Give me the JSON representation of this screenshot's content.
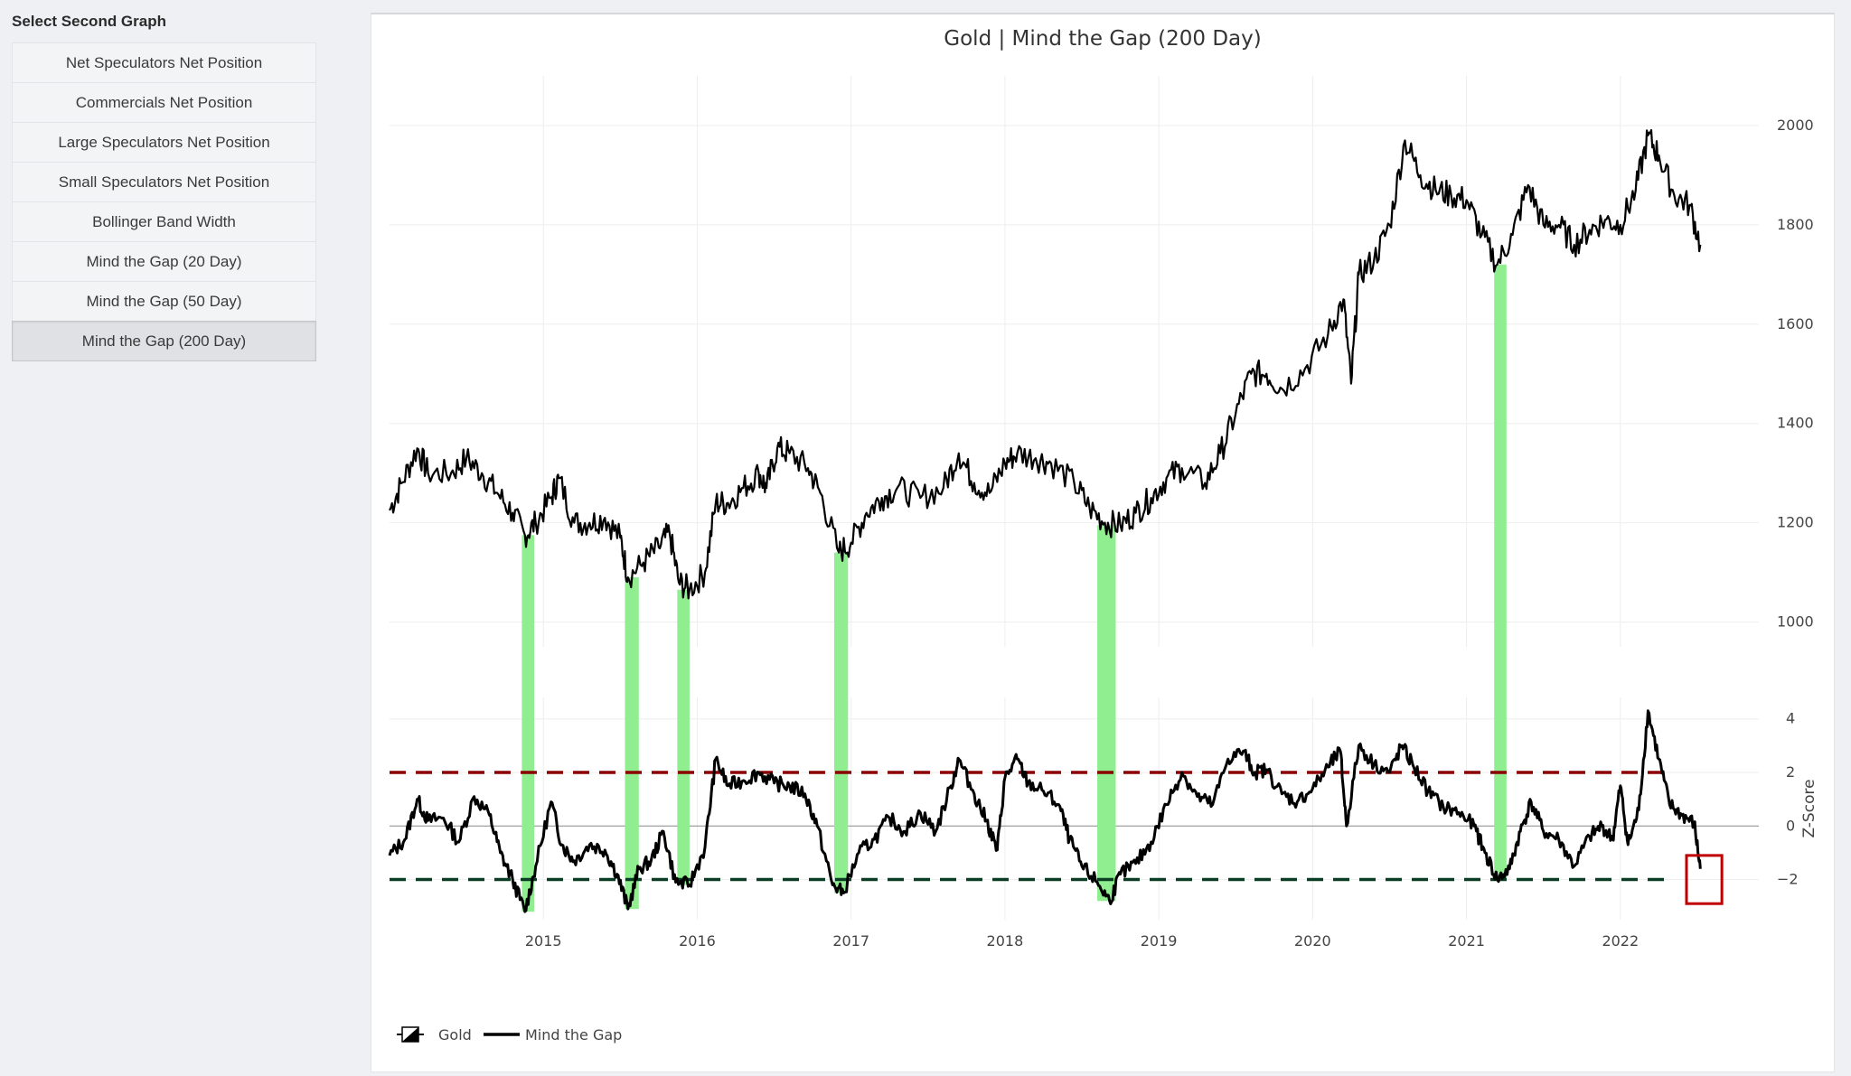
{
  "sidebar": {
    "title": "Select Second Graph",
    "items": [
      {
        "label": "Net Speculators Net Position",
        "active": false
      },
      {
        "label": "Commercials Net Position",
        "active": false
      },
      {
        "label": "Large Speculators Net Position",
        "active": false
      },
      {
        "label": "Small Speculators Net Position",
        "active": false
      },
      {
        "label": "Bollinger Band Width",
        "active": false
      },
      {
        "label": "Mind the Gap (20 Day)",
        "active": false
      },
      {
        "label": "Mind the Gap (50 Day)",
        "active": false
      },
      {
        "label": "Mind the Gap (200 Day)",
        "active": true
      }
    ]
  },
  "colors": {
    "highlight": "#90ee90",
    "upper_band": "#8b0000",
    "lower_band": "#0b3d24",
    "line": "#000000",
    "alert_box": "#c00000"
  },
  "chart_data": {
    "type": "line",
    "title": "Gold | Mind the Gap (200 Day)",
    "x_ticks": [
      "2015",
      "2016",
      "2017",
      "2018",
      "2019",
      "2020",
      "2021",
      "2022"
    ],
    "x_range": [
      2014.0,
      2022.9
    ],
    "grid": true,
    "legend_position": "bottom-left",
    "legend": [
      "Gold",
      "Mind the Gap"
    ],
    "top_panel": {
      "series_name": "Gold",
      "y_ticks": [
        "1000",
        "1200",
        "1400",
        "1600",
        "1800",
        "2000"
      ],
      "y_range": [
        950,
        2100
      ],
      "points": [
        [
          2014.0,
          1225
        ],
        [
          2014.08,
          1280
        ],
        [
          2014.18,
          1350
        ],
        [
          2014.25,
          1300
        ],
        [
          2014.4,
          1300
        ],
        [
          2014.5,
          1330
        ],
        [
          2014.6,
          1300
        ],
        [
          2014.7,
          1260
        ],
        [
          2014.8,
          1220
        ],
        [
          2014.88,
          1175
        ],
        [
          2014.95,
          1200
        ],
        [
          2015.05,
          1250
        ],
        [
          2015.1,
          1290
        ],
        [
          2015.2,
          1200
        ],
        [
          2015.3,
          1200
        ],
        [
          2015.4,
          1210
        ],
        [
          2015.5,
          1170
        ],
        [
          2015.55,
          1090
        ],
        [
          2015.65,
          1120
        ],
        [
          2015.75,
          1150
        ],
        [
          2015.82,
          1180
        ],
        [
          2015.88,
          1080
        ],
        [
          2015.95,
          1065
        ],
        [
          2016.05,
          1100
        ],
        [
          2016.12,
          1240
        ],
        [
          2016.2,
          1240
        ],
        [
          2016.3,
          1270
        ],
        [
          2016.4,
          1300
        ],
        [
          2016.45,
          1270
        ],
        [
          2016.52,
          1350
        ],
        [
          2016.6,
          1340
        ],
        [
          2016.72,
          1310
        ],
        [
          2016.8,
          1260
        ],
        [
          2016.92,
          1140
        ],
        [
          2017.0,
          1160
        ],
        [
          2017.1,
          1220
        ],
        [
          2017.2,
          1250
        ],
        [
          2017.3,
          1270
        ],
        [
          2017.45,
          1250
        ],
        [
          2017.6,
          1270
        ],
        [
          2017.7,
          1340
        ],
        [
          2017.8,
          1280
        ],
        [
          2017.9,
          1260
        ],
        [
          2018.0,
          1320
        ],
        [
          2018.08,
          1340
        ],
        [
          2018.2,
          1330
        ],
        [
          2018.3,
          1320
        ],
        [
          2018.45,
          1280
        ],
        [
          2018.55,
          1230
        ],
        [
          2018.65,
          1200
        ],
        [
          2018.75,
          1195
        ],
        [
          2018.85,
          1220
        ],
        [
          2018.95,
          1250
        ],
        [
          2019.05,
          1290
        ],
        [
          2019.15,
          1310
        ],
        [
          2019.3,
          1280
        ],
        [
          2019.4,
          1340
        ],
        [
          2019.5,
          1420
        ],
        [
          2019.6,
          1500
        ],
        [
          2019.7,
          1500
        ],
        [
          2019.8,
          1470
        ],
        [
          2019.95,
          1510
        ],
        [
          2020.1,
          1580
        ],
        [
          2020.2,
          1650
        ],
        [
          2020.25,
          1480
        ],
        [
          2020.3,
          1700
        ],
        [
          2020.4,
          1730
        ],
        [
          2020.5,
          1800
        ],
        [
          2020.6,
          1970
        ],
        [
          2020.7,
          1900
        ],
        [
          2020.8,
          1870
        ],
        [
          2020.9,
          1860
        ],
        [
          2021.0,
          1850
        ],
        [
          2021.1,
          1780
        ],
        [
          2021.2,
          1720
        ],
        [
          2021.3,
          1780
        ],
        [
          2021.4,
          1880
        ],
        [
          2021.5,
          1800
        ],
        [
          2021.6,
          1800
        ],
        [
          2021.7,
          1760
        ],
        [
          2021.8,
          1790
        ],
        [
          2021.9,
          1810
        ],
        [
          2022.0,
          1800
        ],
        [
          2022.1,
          1870
        ],
        [
          2022.18,
          1980
        ],
        [
          2022.25,
          1940
        ],
        [
          2022.35,
          1860
        ],
        [
          2022.45,
          1840
        ],
        [
          2022.52,
          1760
        ]
      ]
    },
    "bottom_panel": {
      "series_name": "Mind the Gap",
      "y_label": "Z-Score",
      "y_ticks": [
        "4",
        "2",
        "0",
        "−2"
      ],
      "y_range": [
        -3.5,
        4.8
      ],
      "upper_threshold": 2,
      "lower_threshold": -2,
      "points": [
        [
          2014.0,
          -1.1
        ],
        [
          2014.1,
          -0.5
        ],
        [
          2014.18,
          1.0
        ],
        [
          2014.25,
          0.2
        ],
        [
          2014.35,
          0.3
        ],
        [
          2014.45,
          -0.6
        ],
        [
          2014.55,
          1.1
        ],
        [
          2014.65,
          0.4
        ],
        [
          2014.72,
          -1.0
        ],
        [
          2014.8,
          -2.0
        ],
        [
          2014.88,
          -3.2
        ],
        [
          2014.95,
          -1.5
        ],
        [
          2015.05,
          0.9
        ],
        [
          2015.12,
          -0.7
        ],
        [
          2015.2,
          -1.3
        ],
        [
          2015.3,
          -0.7
        ],
        [
          2015.4,
          -0.9
        ],
        [
          2015.48,
          -1.8
        ],
        [
          2015.55,
          -3.1
        ],
        [
          2015.62,
          -1.6
        ],
        [
          2015.7,
          -1.3
        ],
        [
          2015.78,
          -0.2
        ],
        [
          2015.86,
          -2.1
        ],
        [
          2015.95,
          -2.2
        ],
        [
          2016.05,
          -0.8
        ],
        [
          2016.12,
          2.5
        ],
        [
          2016.2,
          1.5
        ],
        [
          2016.3,
          1.7
        ],
        [
          2016.4,
          2.0
        ],
        [
          2016.5,
          1.6
        ],
        [
          2016.6,
          1.5
        ],
        [
          2016.7,
          1.2
        ],
        [
          2016.78,
          0.0
        ],
        [
          2016.88,
          -2.2
        ],
        [
          2016.95,
          -2.5
        ],
        [
          2017.05,
          -1.0
        ],
        [
          2017.15,
          -0.5
        ],
        [
          2017.25,
          0.3
        ],
        [
          2017.35,
          -0.2
        ],
        [
          2017.45,
          0.5
        ],
        [
          2017.55,
          -0.2
        ],
        [
          2017.65,
          1.5
        ],
        [
          2017.7,
          2.5
        ],
        [
          2017.8,
          1.2
        ],
        [
          2017.88,
          0.2
        ],
        [
          2017.95,
          -0.9
        ],
        [
          2018.0,
          1.8
        ],
        [
          2018.08,
          2.5
        ],
        [
          2018.15,
          1.6
        ],
        [
          2018.25,
          1.3
        ],
        [
          2018.35,
          0.8
        ],
        [
          2018.42,
          -0.5
        ],
        [
          2018.5,
          -1.5
        ],
        [
          2018.6,
          -2.1
        ],
        [
          2018.68,
          -2.8
        ],
        [
          2018.75,
          -1.8
        ],
        [
          2018.85,
          -1.4
        ],
        [
          2018.95,
          -0.6
        ],
        [
          2019.05,
          0.8
        ],
        [
          2019.15,
          2.0
        ],
        [
          2019.25,
          1.1
        ],
        [
          2019.35,
          0.8
        ],
        [
          2019.45,
          2.5
        ],
        [
          2019.55,
          2.8
        ],
        [
          2019.62,
          2.0
        ],
        [
          2019.7,
          2.1
        ],
        [
          2019.8,
          1.2
        ],
        [
          2019.9,
          0.9
        ],
        [
          2020.0,
          1.4
        ],
        [
          2020.1,
          2.2
        ],
        [
          2020.18,
          2.8
        ],
        [
          2020.22,
          0.0
        ],
        [
          2020.3,
          3.0
        ],
        [
          2020.4,
          2.3
        ],
        [
          2020.5,
          2.0
        ],
        [
          2020.58,
          3.0
        ],
        [
          2020.65,
          2.3
        ],
        [
          2020.75,
          1.3
        ],
        [
          2020.85,
          0.7
        ],
        [
          2020.95,
          0.5
        ],
        [
          2021.05,
          0.0
        ],
        [
          2021.12,
          -1.0
        ],
        [
          2021.2,
          -2.0
        ],
        [
          2021.28,
          -1.6
        ],
        [
          2021.35,
          -0.2
        ],
        [
          2021.42,
          0.9
        ],
        [
          2021.5,
          -0.2
        ],
        [
          2021.6,
          -0.5
        ],
        [
          2021.7,
          -1.5
        ],
        [
          2021.8,
          -0.4
        ],
        [
          2021.88,
          0.0
        ],
        [
          2021.95,
          -0.5
        ],
        [
          2022.0,
          1.5
        ],
        [
          2022.05,
          -0.7
        ],
        [
          2022.12,
          0.6
        ],
        [
          2022.18,
          4.3
        ],
        [
          2022.25,
          2.5
        ],
        [
          2022.32,
          0.8
        ],
        [
          2022.4,
          0.4
        ],
        [
          2022.48,
          0.1
        ],
        [
          2022.52,
          -1.6
        ]
      ]
    },
    "highlight_regions": [
      [
        2014.86,
        2014.94
      ],
      [
        2015.53,
        2015.62
      ],
      [
        2015.87,
        2015.95
      ],
      [
        2016.89,
        2016.98
      ],
      [
        2018.6,
        2018.72
      ],
      [
        2021.18,
        2021.26
      ]
    ],
    "alert_region": {
      "x": [
        2022.43,
        2022.66
      ],
      "y": [
        -2.9,
        -1.1
      ]
    }
  }
}
